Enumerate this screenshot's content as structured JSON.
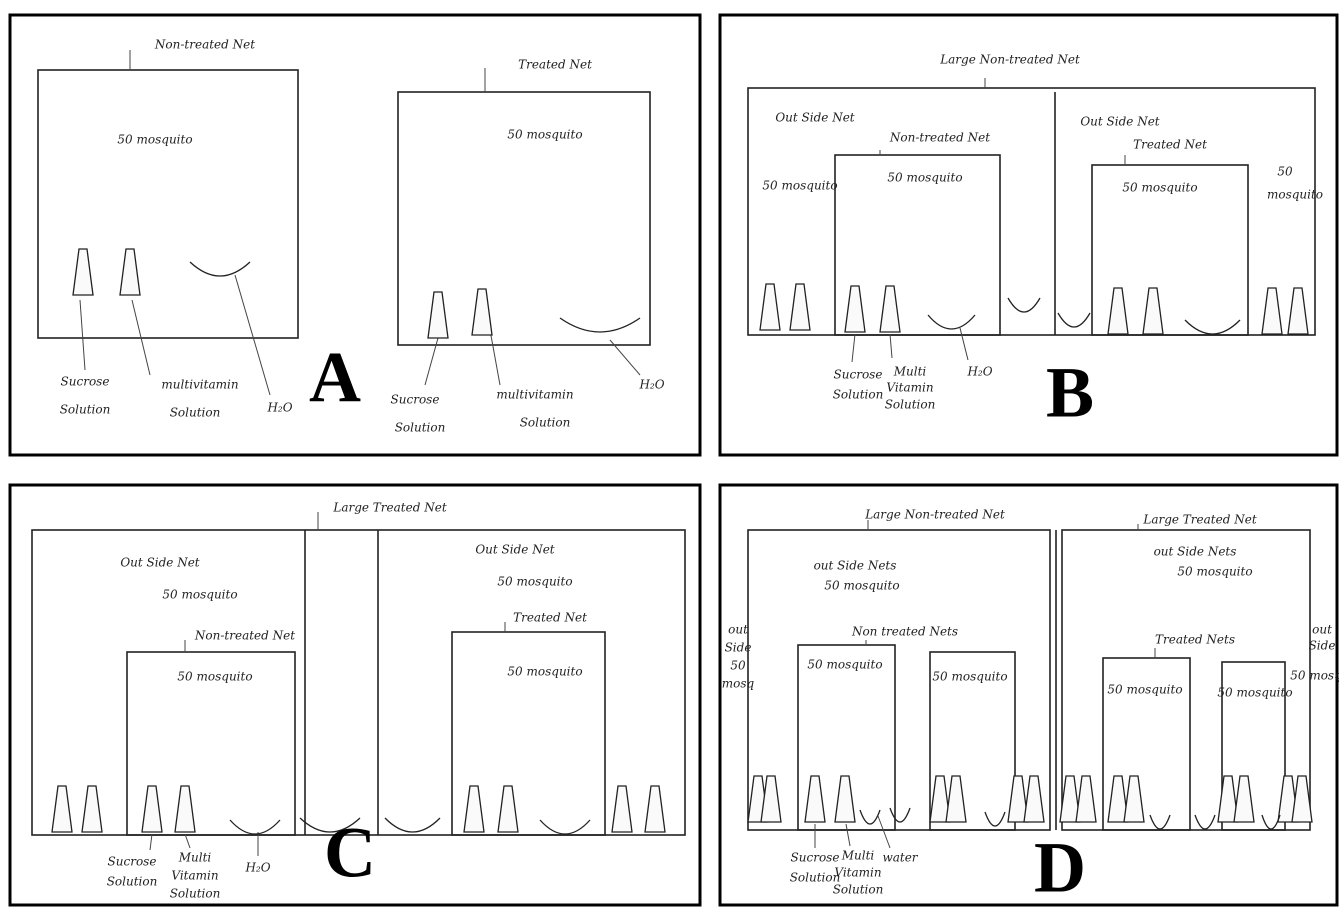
{
  "panels": [
    {
      "letter": "A",
      "labels": [
        "Non-treated Net",
        "50 mosquito",
        "Treated Net",
        "50 mosquito",
        "Sucrose",
        "Solution",
        "multivitamin",
        "Solution",
        "H₂O",
        "Sucrose",
        "Solution",
        "multivitamin",
        "Solution",
        "H₂O"
      ]
    },
    {
      "letter": "B",
      "labels": [
        "Large Non-treated Net",
        "Out Side Net",
        "50 mosquito",
        "Non-treated Net",
        "50 mosquito",
        "Out Side Net",
        "Treated Net",
        "50 mosquito",
        "50",
        "mosquito",
        "Sucrose",
        "Solution",
        "Multi",
        "Vitamin",
        "Solution",
        "H₂O"
      ]
    },
    {
      "letter": "C",
      "labels": [
        "Large Treated Net",
        "Out Side Net",
        "50 mosquito",
        "Non-treated Net",
        "50 mosquito",
        "Out Side Net",
        "50 mosquito",
        "Treated Net",
        "50 mosquito",
        "Sucrose",
        "Solution",
        "Multi",
        "Vitamin",
        "Solution",
        "H₂O"
      ]
    },
    {
      "letter": "D",
      "labels": [
        "Large Non-treated Net",
        "Large Treated Net",
        "out Side Nets",
        "50 mosquito",
        "out Side Nets",
        "50 mosquito",
        "Non treated Nets",
        "Treated Nets",
        "50 mosquito",
        "50 mosquito",
        "50 mosquito",
        "50 mosquito",
        "out",
        "Side",
        "50",
        "mosq",
        "out",
        "Side",
        "50 mosq",
        "Sucrose",
        "Solution",
        "Multi",
        "Vitamin",
        "Solution",
        "water"
      ]
    }
  ]
}
